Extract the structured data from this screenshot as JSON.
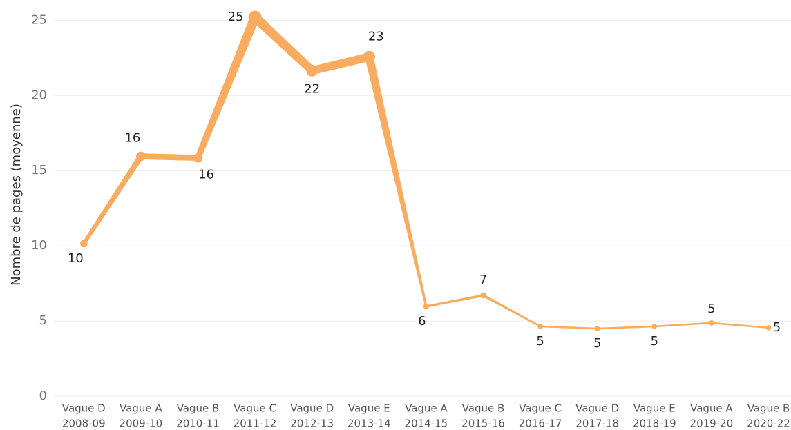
{
  "chart_data": {
    "type": "line",
    "y_label": "Nombre de pages (moyenne)",
    "categories": [
      [
        "Vague D",
        "2008-09"
      ],
      [
        "Vague A",
        "2009-10"
      ],
      [
        "Vague B",
        "2010-11"
      ],
      [
        "Vague C",
        "2011-12"
      ],
      [
        "Vague D",
        "2012-13"
      ],
      [
        "Vague E",
        "2013-14"
      ],
      [
        "Vague A",
        "2014-15"
      ],
      [
        "Vague B",
        "2015-16"
      ],
      [
        "Vague C",
        "2016-17"
      ],
      [
        "Vague D",
        "2017-18"
      ],
      [
        "Vague E",
        "2018-19"
      ],
      [
        "Vague A",
        "2019-20"
      ],
      [
        "Vague B",
        "2020-22"
      ]
    ],
    "values": [
      10.15,
      15.95,
      15.85,
      25.2,
      21.65,
      22.56,
      5.97,
      6.7,
      4.64,
      4.5,
      4.64,
      4.87,
      4.55
    ],
    "value_labels": [
      "10",
      "16",
      "16",
      "25",
      "22",
      "23",
      "6",
      "7",
      "5",
      "5",
      "5",
      "5",
      "5"
    ],
    "color": "#f9ac5f",
    "ylim": [
      0,
      25.2
    ],
    "yticks": [
      0,
      5,
      10,
      15,
      20,
      25
    ],
    "grid": true
  }
}
